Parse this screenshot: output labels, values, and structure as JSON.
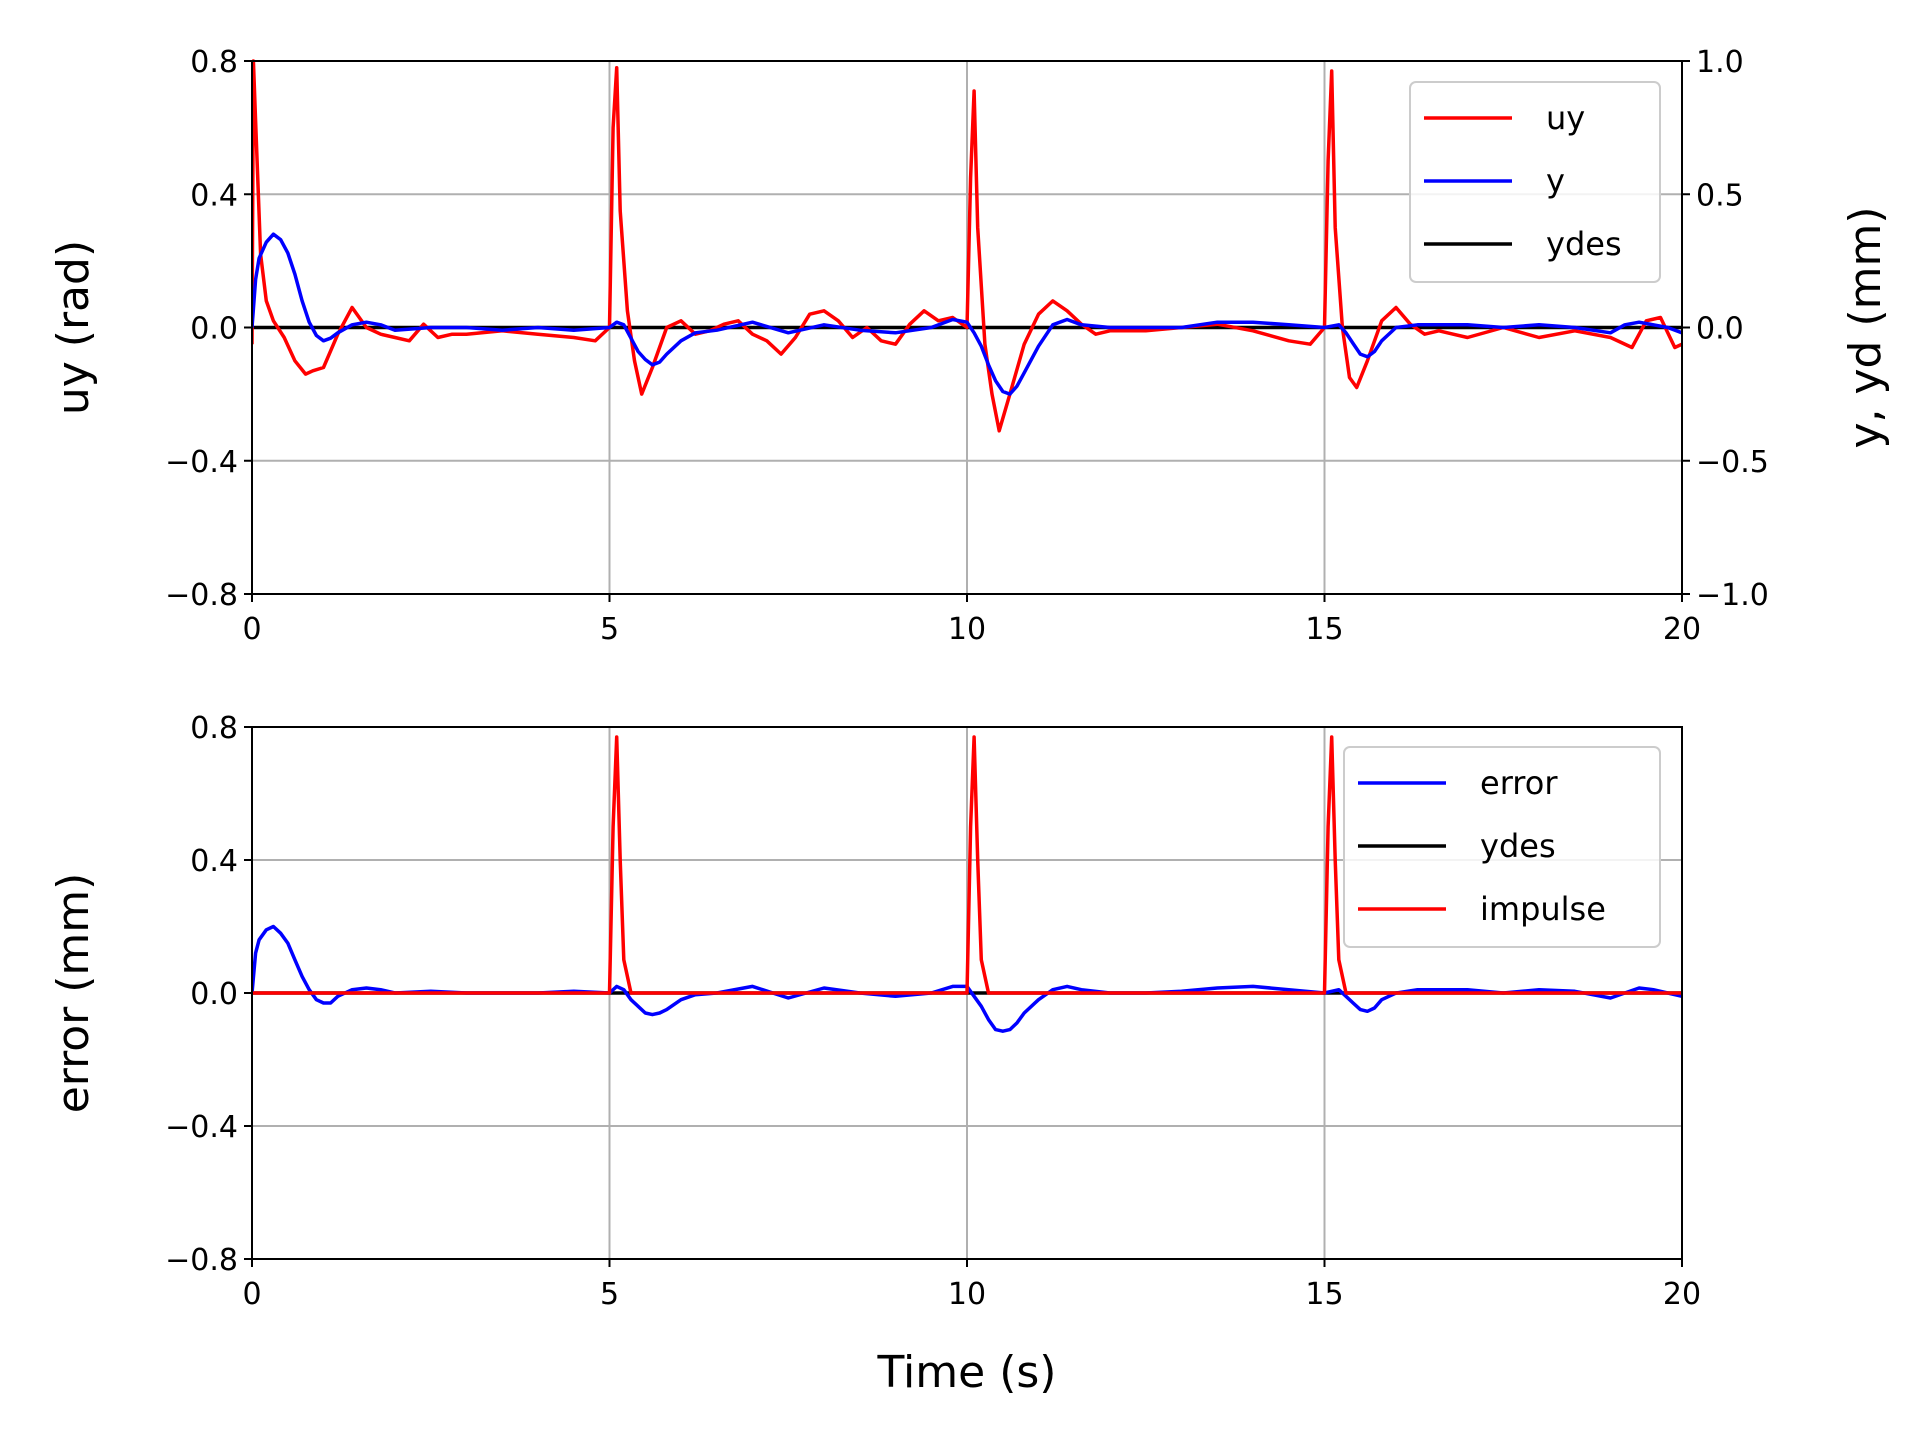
{
  "chart_data": [
    {
      "type": "line",
      "xlabel": "",
      "ylabel": "uy (rad)",
      "y2label": "y, yd (mm)",
      "xlim": [
        0,
        20
      ],
      "ylim": [
        -0.8,
        0.8
      ],
      "y2lim": [
        -1.0,
        1.0
      ],
      "xticks": [
        "0",
        "5",
        "10",
        "15",
        "20"
      ],
      "yticks": [
        "−0.8",
        "−0.4",
        "0.0",
        "0.4",
        "0.8"
      ],
      "y2ticks": [
        "−1.0",
        "−0.5",
        "0.0",
        "0.5",
        "1.0"
      ],
      "grid": true,
      "legend_position": "top-right",
      "series": [
        {
          "name": "uy",
          "color": "#ff0000",
          "axis": "left",
          "x": [
            0.0,
            0.02,
            0.05,
            0.12,
            0.2,
            0.3,
            0.45,
            0.6,
            0.75,
            0.85,
            1.0,
            1.2,
            1.4,
            1.6,
            1.8,
            2.0,
            2.2,
            2.4,
            2.6,
            2.8,
            3.0,
            3.5,
            4.0,
            4.5,
            4.8,
            5.0,
            5.05,
            5.1,
            5.15,
            5.25,
            5.35,
            5.45,
            5.6,
            5.8,
            6.0,
            6.2,
            6.4,
            6.6,
            6.8,
            7.0,
            7.2,
            7.4,
            7.6,
            7.8,
            8.0,
            8.2,
            8.4,
            8.6,
            8.8,
            9.0,
            9.2,
            9.4,
            9.6,
            9.8,
            10.0,
            10.05,
            10.1,
            10.15,
            10.25,
            10.35,
            10.45,
            10.6,
            10.8,
            11.0,
            11.2,
            11.4,
            11.6,
            11.8,
            12.0,
            12.5,
            13.0,
            13.5,
            14.0,
            14.5,
            14.8,
            15.0,
            15.05,
            15.1,
            15.15,
            15.25,
            15.35,
            15.45,
            15.6,
            15.8,
            16.0,
            16.2,
            16.4,
            16.6,
            16.8,
            17.0,
            17.5,
            18.0,
            18.5,
            19.0,
            19.3,
            19.5,
            19.7,
            19.9,
            20.0
          ],
          "y": [
            -0.05,
            0.8,
            0.62,
            0.22,
            0.08,
            0.02,
            -0.03,
            -0.1,
            -0.14,
            -0.13,
            -0.12,
            -0.02,
            0.06,
            0.0,
            -0.02,
            -0.03,
            -0.04,
            0.01,
            -0.03,
            -0.02,
            -0.02,
            -0.01,
            -0.02,
            -0.03,
            -0.04,
            0.0,
            0.6,
            0.78,
            0.35,
            0.05,
            -0.1,
            -0.2,
            -0.12,
            0.0,
            0.02,
            -0.02,
            -0.01,
            0.01,
            0.02,
            -0.02,
            -0.04,
            -0.08,
            -0.03,
            0.04,
            0.05,
            0.02,
            -0.03,
            0.0,
            -0.04,
            -0.05,
            0.01,
            0.05,
            0.02,
            0.03,
            0.0,
            0.45,
            0.71,
            0.3,
            -0.05,
            -0.2,
            -0.31,
            -0.2,
            -0.05,
            0.04,
            0.08,
            0.05,
            0.01,
            -0.02,
            -0.01,
            -0.01,
            0.0,
            0.01,
            -0.01,
            -0.04,
            -0.05,
            0.0,
            0.5,
            0.77,
            0.3,
            0.0,
            -0.15,
            -0.18,
            -0.1,
            0.02,
            0.06,
            0.01,
            -0.02,
            -0.01,
            -0.02,
            -0.03,
            0.0,
            -0.03,
            -0.01,
            -0.03,
            -0.06,
            0.02,
            0.03,
            -0.06,
            -0.05
          ]
        },
        {
          "name": "y",
          "color": "#0000ff",
          "axis": "right",
          "x": [
            0.0,
            0.05,
            0.1,
            0.2,
            0.3,
            0.4,
            0.5,
            0.6,
            0.7,
            0.8,
            0.9,
            1.0,
            1.1,
            1.2,
            1.4,
            1.6,
            1.8,
            2.0,
            2.5,
            3.0,
            3.5,
            4.0,
            4.5,
            5.0,
            5.1,
            5.2,
            5.3,
            5.4,
            5.5,
            5.6,
            5.7,
            5.8,
            6.0,
            6.2,
            6.5,
            7.0,
            7.5,
            8.0,
            8.5,
            9.0,
            9.5,
            9.8,
            10.0,
            10.1,
            10.2,
            10.3,
            10.4,
            10.5,
            10.6,
            10.7,
            10.8,
            11.0,
            11.2,
            11.4,
            11.6,
            12.0,
            12.5,
            13.0,
            13.5,
            14.0,
            14.5,
            15.0,
            15.2,
            15.3,
            15.4,
            15.5,
            15.6,
            15.7,
            15.8,
            16.0,
            16.3,
            17.0,
            17.5,
            18.0,
            18.5,
            19.0,
            19.2,
            19.4,
            19.6,
            19.8,
            20.0
          ],
          "y": [
            0.0,
            0.18,
            0.26,
            0.32,
            0.35,
            0.33,
            0.28,
            0.2,
            0.1,
            0.02,
            -0.03,
            -0.05,
            -0.04,
            -0.02,
            0.01,
            0.02,
            0.01,
            -0.01,
            0.0,
            0.0,
            -0.01,
            0.0,
            -0.01,
            0.0,
            0.02,
            0.01,
            -0.04,
            -0.09,
            -0.12,
            -0.14,
            -0.13,
            -0.1,
            -0.05,
            -0.02,
            -0.01,
            0.02,
            -0.02,
            0.01,
            -0.01,
            -0.02,
            0.0,
            0.03,
            0.02,
            -0.02,
            -0.07,
            -0.14,
            -0.2,
            -0.24,
            -0.25,
            -0.22,
            -0.17,
            -0.07,
            0.01,
            0.03,
            0.01,
            0.0,
            0.0,
            0.0,
            0.02,
            0.02,
            0.01,
            0.0,
            0.01,
            -0.02,
            -0.06,
            -0.1,
            -0.11,
            -0.09,
            -0.05,
            0.0,
            0.01,
            0.01,
            0.0,
            0.01,
            0.0,
            -0.02,
            0.01,
            0.02,
            0.01,
            0.0,
            -0.02
          ]
        },
        {
          "name": "ydes",
          "color": "#000000",
          "axis": "right",
          "x": [
            0,
            20
          ],
          "y": [
            0,
            0
          ]
        }
      ]
    },
    {
      "type": "line",
      "xlabel": "Time (s)",
      "ylabel": "error (mm)",
      "xlim": [
        0,
        20
      ],
      "ylim": [
        -0.8,
        0.8
      ],
      "xticks": [
        "0",
        "5",
        "10",
        "15",
        "20"
      ],
      "yticks": [
        "−0.8",
        "−0.4",
        "0.0",
        "0.4",
        "0.8"
      ],
      "grid": true,
      "legend_position": "top-right",
      "series": [
        {
          "name": "error",
          "color": "#0000ff",
          "x": [
            0.0,
            0.05,
            0.1,
            0.2,
            0.3,
            0.4,
            0.5,
            0.6,
            0.7,
            0.8,
            0.9,
            1.0,
            1.1,
            1.2,
            1.4,
            1.6,
            1.8,
            2.0,
            2.5,
            3.0,
            3.5,
            4.0,
            4.5,
            5.0,
            5.1,
            5.2,
            5.3,
            5.4,
            5.5,
            5.6,
            5.7,
            5.8,
            6.0,
            6.2,
            6.5,
            7.0,
            7.5,
            8.0,
            8.5,
            9.0,
            9.5,
            9.8,
            10.0,
            10.1,
            10.2,
            10.3,
            10.4,
            10.5,
            10.6,
            10.7,
            10.8,
            11.0,
            11.2,
            11.4,
            11.6,
            12.0,
            12.5,
            13.0,
            13.5,
            14.0,
            14.5,
            15.0,
            15.2,
            15.3,
            15.4,
            15.5,
            15.6,
            15.7,
            15.8,
            16.0,
            16.3,
            17.0,
            17.5,
            18.0,
            18.5,
            19.0,
            19.2,
            19.4,
            19.6,
            19.8,
            20.0
          ],
          "y": [
            0.0,
            0.12,
            0.16,
            0.19,
            0.2,
            0.18,
            0.15,
            0.1,
            0.05,
            0.01,
            -0.02,
            -0.03,
            -0.03,
            -0.01,
            0.01,
            0.015,
            0.01,
            0.0,
            0.005,
            0.0,
            0.0,
            0.0,
            0.005,
            0.0,
            0.02,
            0.01,
            -0.02,
            -0.04,
            -0.06,
            -0.065,
            -0.06,
            -0.05,
            -0.02,
            -0.005,
            0.0,
            0.02,
            -0.015,
            0.015,
            0.0,
            -0.01,
            0.0,
            0.02,
            0.02,
            -0.01,
            -0.04,
            -0.08,
            -0.11,
            -0.115,
            -0.11,
            -0.09,
            -0.06,
            -0.02,
            0.01,
            0.02,
            0.01,
            0.0,
            0.0,
            0.005,
            0.015,
            0.02,
            0.01,
            0.0,
            0.01,
            -0.01,
            -0.03,
            -0.05,
            -0.055,
            -0.045,
            -0.02,
            0.0,
            0.01,
            0.01,
            0.0,
            0.01,
            0.005,
            -0.015,
            0.0,
            0.015,
            0.01,
            0.0,
            -0.01
          ]
        },
        {
          "name": "ydes",
          "color": "#000000",
          "x": [
            0,
            20
          ],
          "y": [
            0,
            0
          ]
        },
        {
          "name": "impulse",
          "color": "#ff0000",
          "x": [
            0,
            5.0,
            5.05,
            5.1,
            5.15,
            5.2,
            5.3,
            10.0,
            10.05,
            10.1,
            10.15,
            10.2,
            10.3,
            15.0,
            15.05,
            15.1,
            15.15,
            15.2,
            15.3,
            20
          ],
          "y": [
            0,
            0,
            0.5,
            0.77,
            0.4,
            0.1,
            0,
            0,
            0.5,
            0.77,
            0.4,
            0.1,
            0,
            0,
            0.5,
            0.77,
            0.4,
            0.1,
            0,
            0
          ]
        }
      ]
    }
  ]
}
